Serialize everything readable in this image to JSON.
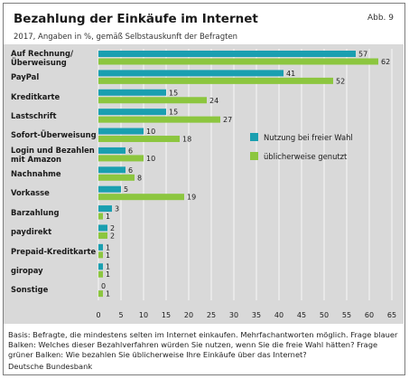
{
  "header": {
    "title": "Bezahlung der Einkäufe im Internet",
    "figure_number": "Abb. 9",
    "subtitle": "2017, Angaben in %, gemäß Selbstauskunft der Befragten"
  },
  "footer": {
    "note": "Basis: Befragte, die mindestens selten im Internet einkaufen. Mehrfachantworten möglich. Frage blauer Balken: Welches dieser Bezahlverfahren würden Sie nutzen, wenn Sie die freie Wahl hätten? Frage grüner Balken: Wie bezahlen Sie üblicherweise Ihre Einkäufe über das Internet?",
    "source": "Deutsche Bundesbank"
  },
  "colors": {
    "blue": "#1a9fb0",
    "green": "#8cc63f",
    "panel": "#d9d9d9",
    "gridline": "#ffffff"
  },
  "chart_data": {
    "type": "bar",
    "orientation": "horizontal",
    "title": "Bezahlung der Einkäufe im Internet",
    "categories": [
      [
        "Auf Rechnung/",
        "Überweisung"
      ],
      [
        "PayPal"
      ],
      [
        "Kreditkarte"
      ],
      [
        "Lastschrift"
      ],
      [
        "Sofort-Überweisung"
      ],
      [
        "Login und Bezahlen",
        "mit Amazon"
      ],
      [
        "Nachnahme"
      ],
      [
        "Vorkasse"
      ],
      [
        "Barzahlung"
      ],
      [
        "paydirekt"
      ],
      [
        "Prepaid-Kreditkarte"
      ],
      [
        "giropay"
      ],
      [
        "Sonstige"
      ]
    ],
    "series": [
      {
        "name": "Nutzung bei freier Wahl",
        "color": "#1a9fb0",
        "values": [
          57,
          41,
          15,
          15,
          10,
          6,
          6,
          5,
          3,
          2,
          1,
          1,
          0
        ]
      },
      {
        "name": "üblicherweise genutzt",
        "color": "#8cc63f",
        "values": [
          62,
          52,
          24,
          27,
          18,
          10,
          8,
          19,
          1,
          2,
          1,
          1,
          1
        ]
      }
    ],
    "xlim": [
      0,
      65
    ],
    "xticks": [
      0,
      5,
      10,
      15,
      20,
      25,
      30,
      35,
      40,
      45,
      50,
      55,
      60,
      65
    ],
    "grid": true,
    "legend_position": "right, middle"
  }
}
